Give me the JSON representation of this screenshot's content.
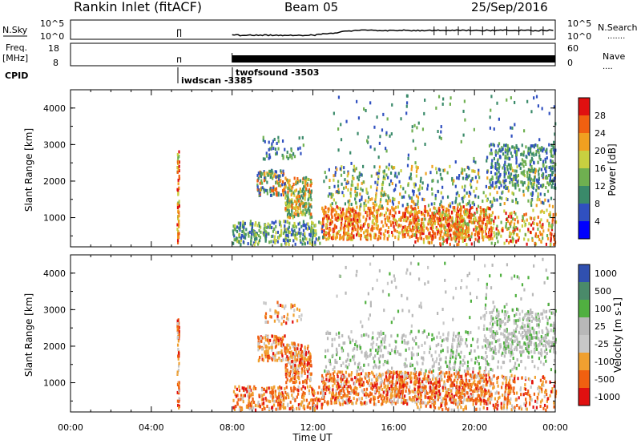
{
  "header": {
    "station": "Rankin Inlet (fitACF)",
    "beam": "Beam 05",
    "date": "25/Sep/2016"
  },
  "left_labels": {
    "nsky": "N.Sky",
    "freq": "Freq.",
    "freq_unit": "[MHz]",
    "cpid": "CPID"
  },
  "right_labels": {
    "nsearch": "N.Search",
    "nave": "Nave",
    "dots": "......."
  },
  "noise_panel": {
    "left_ticks": [
      "10^5",
      "10^0"
    ],
    "right_ticks": [
      "10^5",
      "10^0"
    ]
  },
  "freq_panel": {
    "left_ticks": [
      "18",
      "8"
    ],
    "right_ticks": [
      "60",
      "0"
    ]
  },
  "cpid_events": [
    {
      "time": "05:20",
      "label": "iwdscan -3385"
    },
    {
      "time": "08:00",
      "label": "twofsound -3503"
    }
  ],
  "colors": {
    "power": [
      "#0000ff",
      "#3050c0",
      "#3a8a6a",
      "#6fb050",
      "#c8d040",
      "#f0a020",
      "#f06010",
      "#e01010"
    ],
    "velocity": [
      "#e01010",
      "#f06010",
      "#f0a030",
      "#c8c8c8",
      "#b8b8b8",
      "#50b040",
      "#4a8a6a",
      "#3050b0"
    ],
    "scatter_light": "#d0d0d0"
  },
  "chart_data": [
    {
      "type": "heatmap",
      "title": "",
      "xlabel": "Time UT",
      "ylabel": "Slant Range [km]",
      "x_ticks": [
        "00:00",
        "04:00",
        "08:00",
        "12:00",
        "16:00",
        "20:00",
        "00:00"
      ],
      "y_ticks": [
        1000,
        2000,
        3000,
        4000
      ],
      "ylim": [
        200,
        4500
      ],
      "colorbar": {
        "label": "Power [dB]",
        "ticks": [
          4,
          8,
          12,
          16,
          20,
          24,
          28
        ],
        "range": [
          0,
          32
        ]
      }
    },
    {
      "type": "heatmap",
      "title": "",
      "xlabel": "Time UT",
      "ylabel": "Slant Range [km]",
      "x_ticks": [
        "00:00",
        "04:00",
        "08:00",
        "12:00",
        "16:00",
        "20:00",
        "00:00"
      ],
      "y_ticks": [
        1000,
        2000,
        3000,
        4000
      ],
      "ylim": [
        200,
        4500
      ],
      "colorbar": {
        "label": "Velocity [m s-1]",
        "ticks": [
          "1000",
          "500",
          "100",
          "25",
          "-25",
          "-100",
          "-500",
          "-1000"
        ]
      }
    }
  ]
}
